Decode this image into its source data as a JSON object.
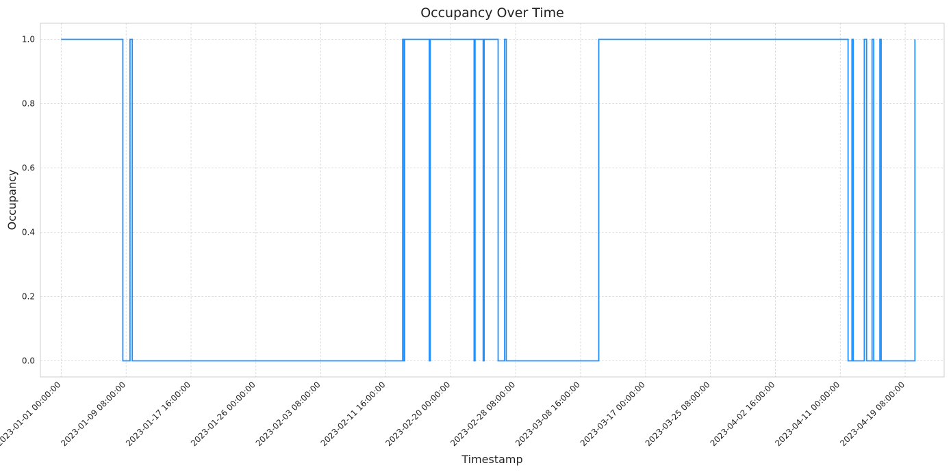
{
  "chart_data": {
    "type": "line",
    "step": true,
    "title": "Occupancy Over Time",
    "xlabel": "Timestamp",
    "ylabel": "Occupancy",
    "grid": true,
    "color": "#1e90ff",
    "xlim": [
      "2022-12-29 08:00:00",
      "2023-04-24 08:00:00"
    ],
    "ylim": [
      -0.05,
      1.05
    ],
    "x_ticks": [
      "2023-01-01 00:00:00",
      "2023-01-09 08:00:00",
      "2023-01-17 16:00:00",
      "2023-01-26 00:00:00",
      "2023-02-03 08:00:00",
      "2023-02-11 16:00:00",
      "2023-02-20 00:00:00",
      "2023-02-28 08:00:00",
      "2023-03-08 16:00:00",
      "2023-03-17 00:00:00",
      "2023-03-25 08:00:00",
      "2023-04-02 16:00:00",
      "2023-04-11 00:00:00",
      "2023-04-19 08:00:00"
    ],
    "y_ticks": [
      "0.0",
      "0.2",
      "0.4",
      "0.6",
      "0.8",
      "1.0"
    ],
    "series": [
      {
        "x": [
          "2023-01-01 00:00:00",
          "2023-01-08 22:00:00",
          "2023-01-09 20:00:00",
          "2023-01-10 03:00:00",
          "2023-02-13 20:00:00",
          "2023-02-14 00:00:00",
          "2023-02-14 02:00:00",
          "2023-02-17 06:00:00",
          "2023-02-17 09:00:00",
          "2023-02-23 00:00:00",
          "2023-02-23 03:00:00",
          "2023-02-24 04:00:00",
          "2023-02-24 07:00:00",
          "2023-02-26 02:00:00",
          "2023-02-26 22:00:00",
          "2023-02-27 03:00:00",
          "2023-03-11 00:00:00",
          "2023-04-12 00:00:00",
          "2023-04-12 12:00:00",
          "2023-04-12 16:00:00",
          "2023-04-14 02:00:00",
          "2023-04-14 09:00:00",
          "2023-04-15 02:00:00",
          "2023-04-15 07:00:00",
          "2023-04-16 02:00:00",
          "2023-04-16 06:00:00",
          "2023-04-20 14:00:00"
        ],
        "y": [
          1,
          0,
          1,
          0,
          1,
          0,
          1,
          0,
          1,
          0,
          1,
          0,
          1,
          0,
          1,
          0,
          1,
          0,
          1,
          0,
          1,
          0,
          1,
          0,
          1,
          0,
          1
        ]
      }
    ]
  }
}
